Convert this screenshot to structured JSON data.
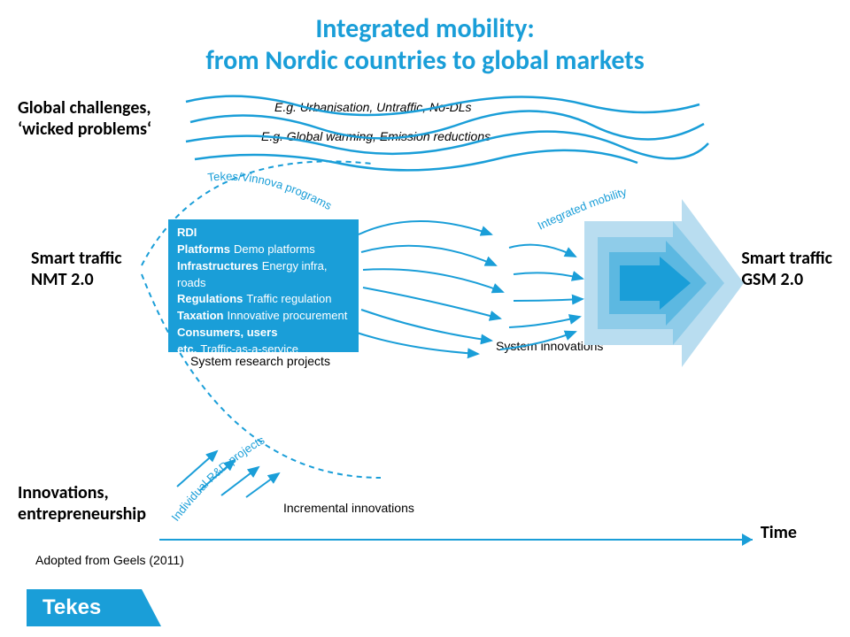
{
  "title": "Integrated mobility:\nfrom Nordic countries to global markets",
  "left_labels": {
    "global_challenges": "Global challenges,\n'wicked problems'",
    "smart_traffic_nmt": "Smart traffic\nNMT 2.0",
    "innovations": "Innovations,\nentrepreneurship"
  },
  "right_labels": {
    "smart_traffic_gsm": "Smart traffic\nGSM 2.0",
    "time": "Time"
  },
  "eg_labels": {
    "urbanisation": "E.g. Urbanisation, Untraffic, No-DLs",
    "global_warming": "E.g. Global warming, Emission reductions"
  },
  "curved_labels": {
    "tekes": "Tekes/Vinnova programs",
    "individual": "Individual R&D projects",
    "integrated": "Integrated mobility"
  },
  "rdi": {
    "header": "RDI",
    "rows": [
      {
        "label": "Platforms",
        "sub": "Demo platforms"
      },
      {
        "label": "Infrastructures",
        "sub": "Energy infra, roads"
      },
      {
        "label": "Regulations",
        "sub": "Traffic regulation"
      },
      {
        "label": "Taxation",
        "sub": "Innovative procurement"
      },
      {
        "label": "Consumers, users",
        "sub": ""
      },
      {
        "label": "etc.",
        "sub": "Traffic-as-a-service"
      }
    ]
  },
  "mid_labels": {
    "sys_research": "System research projects",
    "sys_innov": "System innovations",
    "incr_innov": "Incremental innovations"
  },
  "adopted": "Adopted from Geels (2011)",
  "logo": "Tekes",
  "colors": {
    "blue": "#1a9ed8",
    "arrow_light": "#b9ddf0",
    "arrow_mid1": "#8fcce9",
    "arrow_mid2": "#5cb8e1",
    "arrow_dark": "#1a9ed8",
    "wave": "#1a9ed8",
    "flow": "#1a9ed8"
  }
}
